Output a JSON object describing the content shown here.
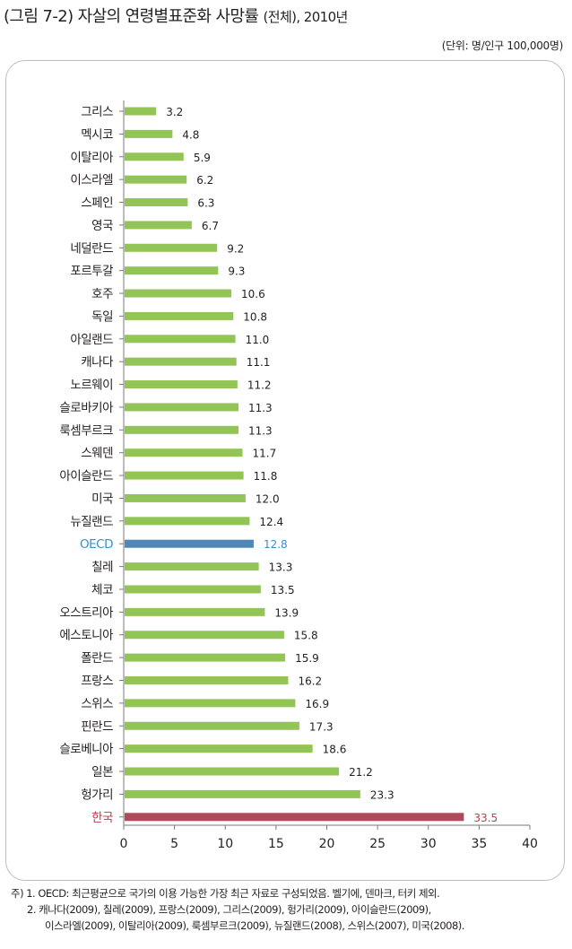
{
  "header": {
    "title": "(그림 7-2) 자살의 연령별표준화 사망률",
    "title_paren": "(전체),",
    "title_year": " 2010년",
    "unit": "(단위: 명/인구 100,000명)"
  },
  "colors": {
    "default_bar": "#92c556",
    "oecd_bar": "#4f87b8",
    "korea_bar": "#b04a5b",
    "oecd_label": "#3b8fc4",
    "korea_label": "#c0394e",
    "axis": "#7a7a7a",
    "text": "#231f20"
  },
  "chart_data": {
    "type": "bar",
    "orientation": "horizontal",
    "title": "(그림 7-2) 자살의 연령별표준화 사망률 (전체), 2010년",
    "xlabel": "",
    "ylabel": "",
    "xlim": [
      0,
      40
    ],
    "xticks": [
      0,
      5,
      10,
      15,
      20,
      25,
      30,
      35,
      40
    ],
    "grid": false,
    "legend": "none",
    "categories": [
      "그리스",
      "멕시코",
      "이탈리아",
      "이스라엘",
      "스페인",
      "영국",
      "네덜란드",
      "포르투갈",
      "호주",
      "독일",
      "아일랜드",
      "캐나다",
      "노르웨이",
      "슬로바키아",
      "룩셈부르크",
      "스웨덴",
      "아이슬란드",
      "미국",
      "뉴질랜드",
      "OECD",
      "칠레",
      "체코",
      "오스트리아",
      "에스토니아",
      "폴란드",
      "프랑스",
      "스위스",
      "핀란드",
      "슬로베니아",
      "일본",
      "헝가리",
      "한국"
    ],
    "values": [
      3.2,
      4.8,
      5.9,
      6.2,
      6.3,
      6.7,
      9.2,
      9.3,
      10.6,
      10.8,
      11.0,
      11.1,
      11.2,
      11.3,
      11.3,
      11.7,
      11.8,
      12.0,
      12.4,
      12.8,
      13.3,
      13.5,
      13.9,
      15.8,
      15.9,
      16.2,
      16.9,
      17.3,
      18.6,
      21.2,
      23.3,
      33.5
    ],
    "value_labels": [
      "3.2",
      "4.8",
      "5.9",
      "6.2",
      "6.3",
      "6.7",
      "9.2",
      "9.3",
      "10.6",
      "10.8",
      "11.0",
      "11.1",
      "11.2",
      "11.3",
      "11.3",
      "11.7",
      "11.8",
      "12.0",
      "12.4",
      "12.8",
      "13.3",
      "13.5",
      "13.9",
      "15.8",
      "15.9",
      "16.2",
      "16.9",
      "17.3",
      "18.6",
      "21.2",
      "23.3",
      "33.5"
    ],
    "highlight": {
      "OECD": "oecd",
      "한국": "korea"
    }
  },
  "notes": {
    "line1": "주) 1. OECD: 최근평균으로 국가의 이용 가능한 가장 최근 자료로 구성되었음. 벨기에, 덴마크, 터키 제외.",
    "line2": "2. 캐나다(2009), 칠레(2009), 프랑스(2009), 그리스(2009), 헝가리(2009), 아이슬란드(2009),",
    "line3": "이스라엘(2009), 이탈리아(2009), 룩셈부르크(2009), 뉴질랜드(2008), 스위스(2007), 미국(2008)."
  }
}
